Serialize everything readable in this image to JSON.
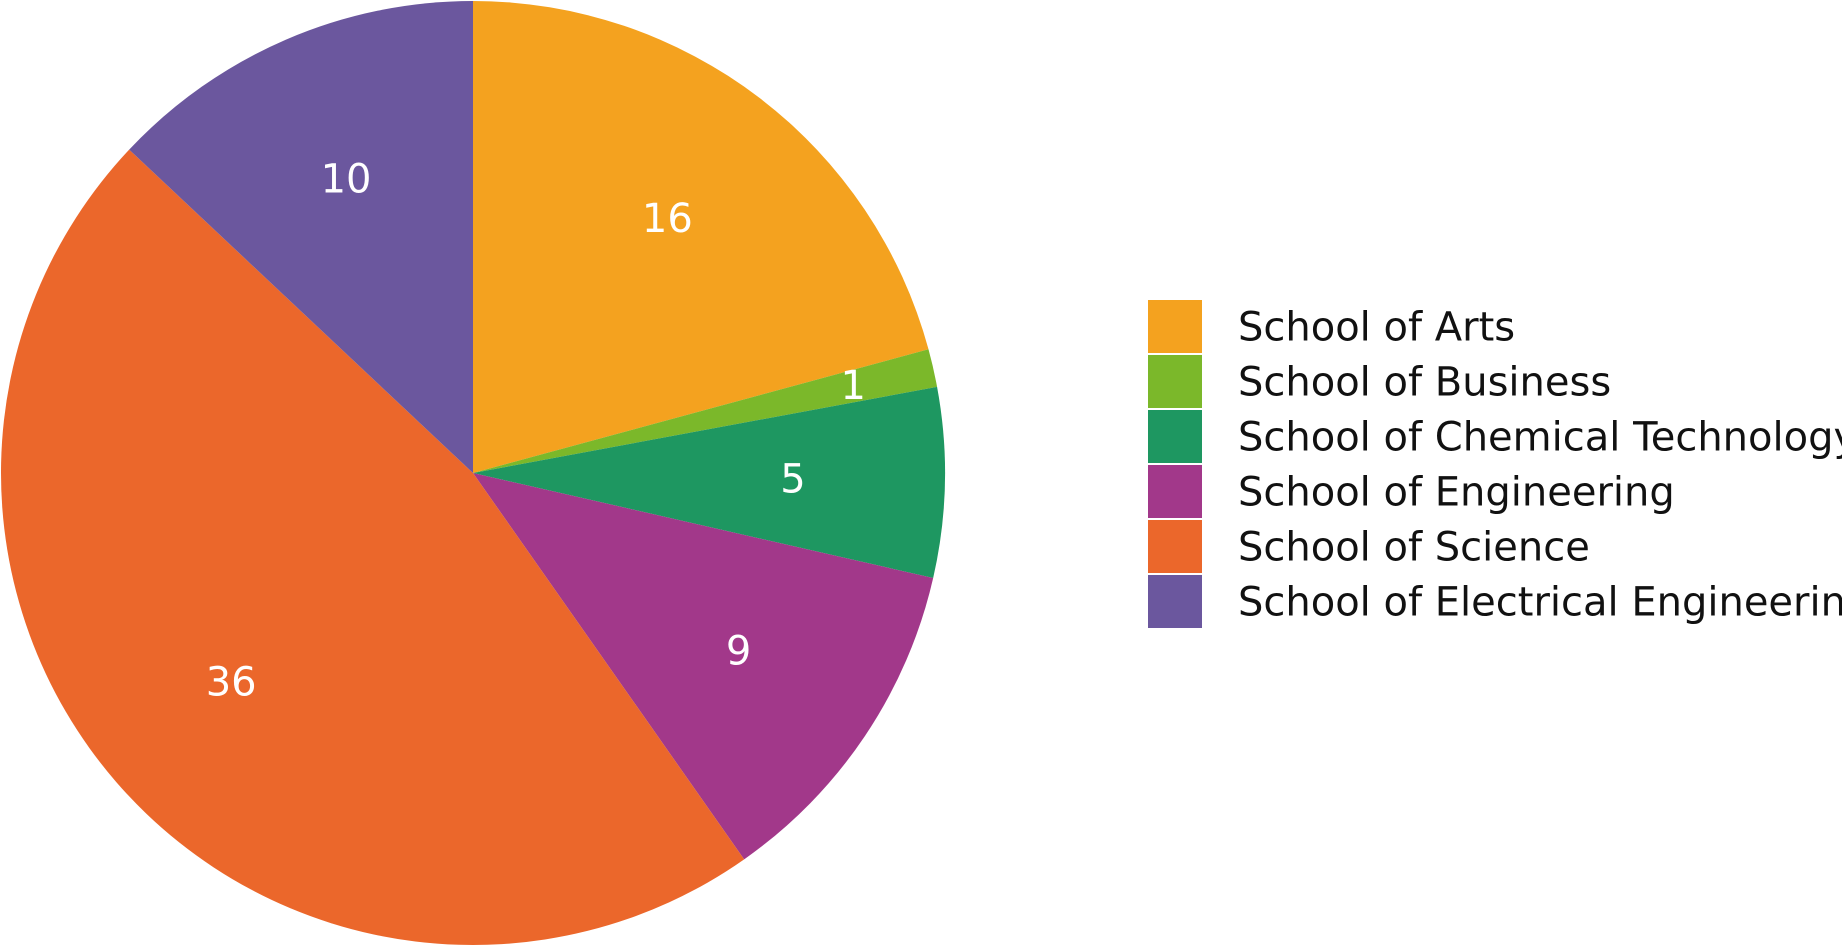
{
  "chart_data": {
    "type": "pie",
    "title": "",
    "start_angle_deg": 0,
    "direction": "clockwise",
    "legend_position": "right",
    "categories": [
      "School of Arts",
      "School of Business",
      "School of Chemical Technology",
      "School of Engineering",
      "School of Science",
      "School of Electrical Engineering"
    ],
    "values": [
      16,
      1,
      5,
      9,
      36,
      10
    ],
    "data_labels": [
      "16",
      "1",
      "5",
      "9",
      "36",
      "10"
    ],
    "colors": [
      "#F4A21F",
      "#7BB82A",
      "#1E9761",
      "#A2388A",
      "#EB672B",
      "#6B579E"
    ]
  }
}
